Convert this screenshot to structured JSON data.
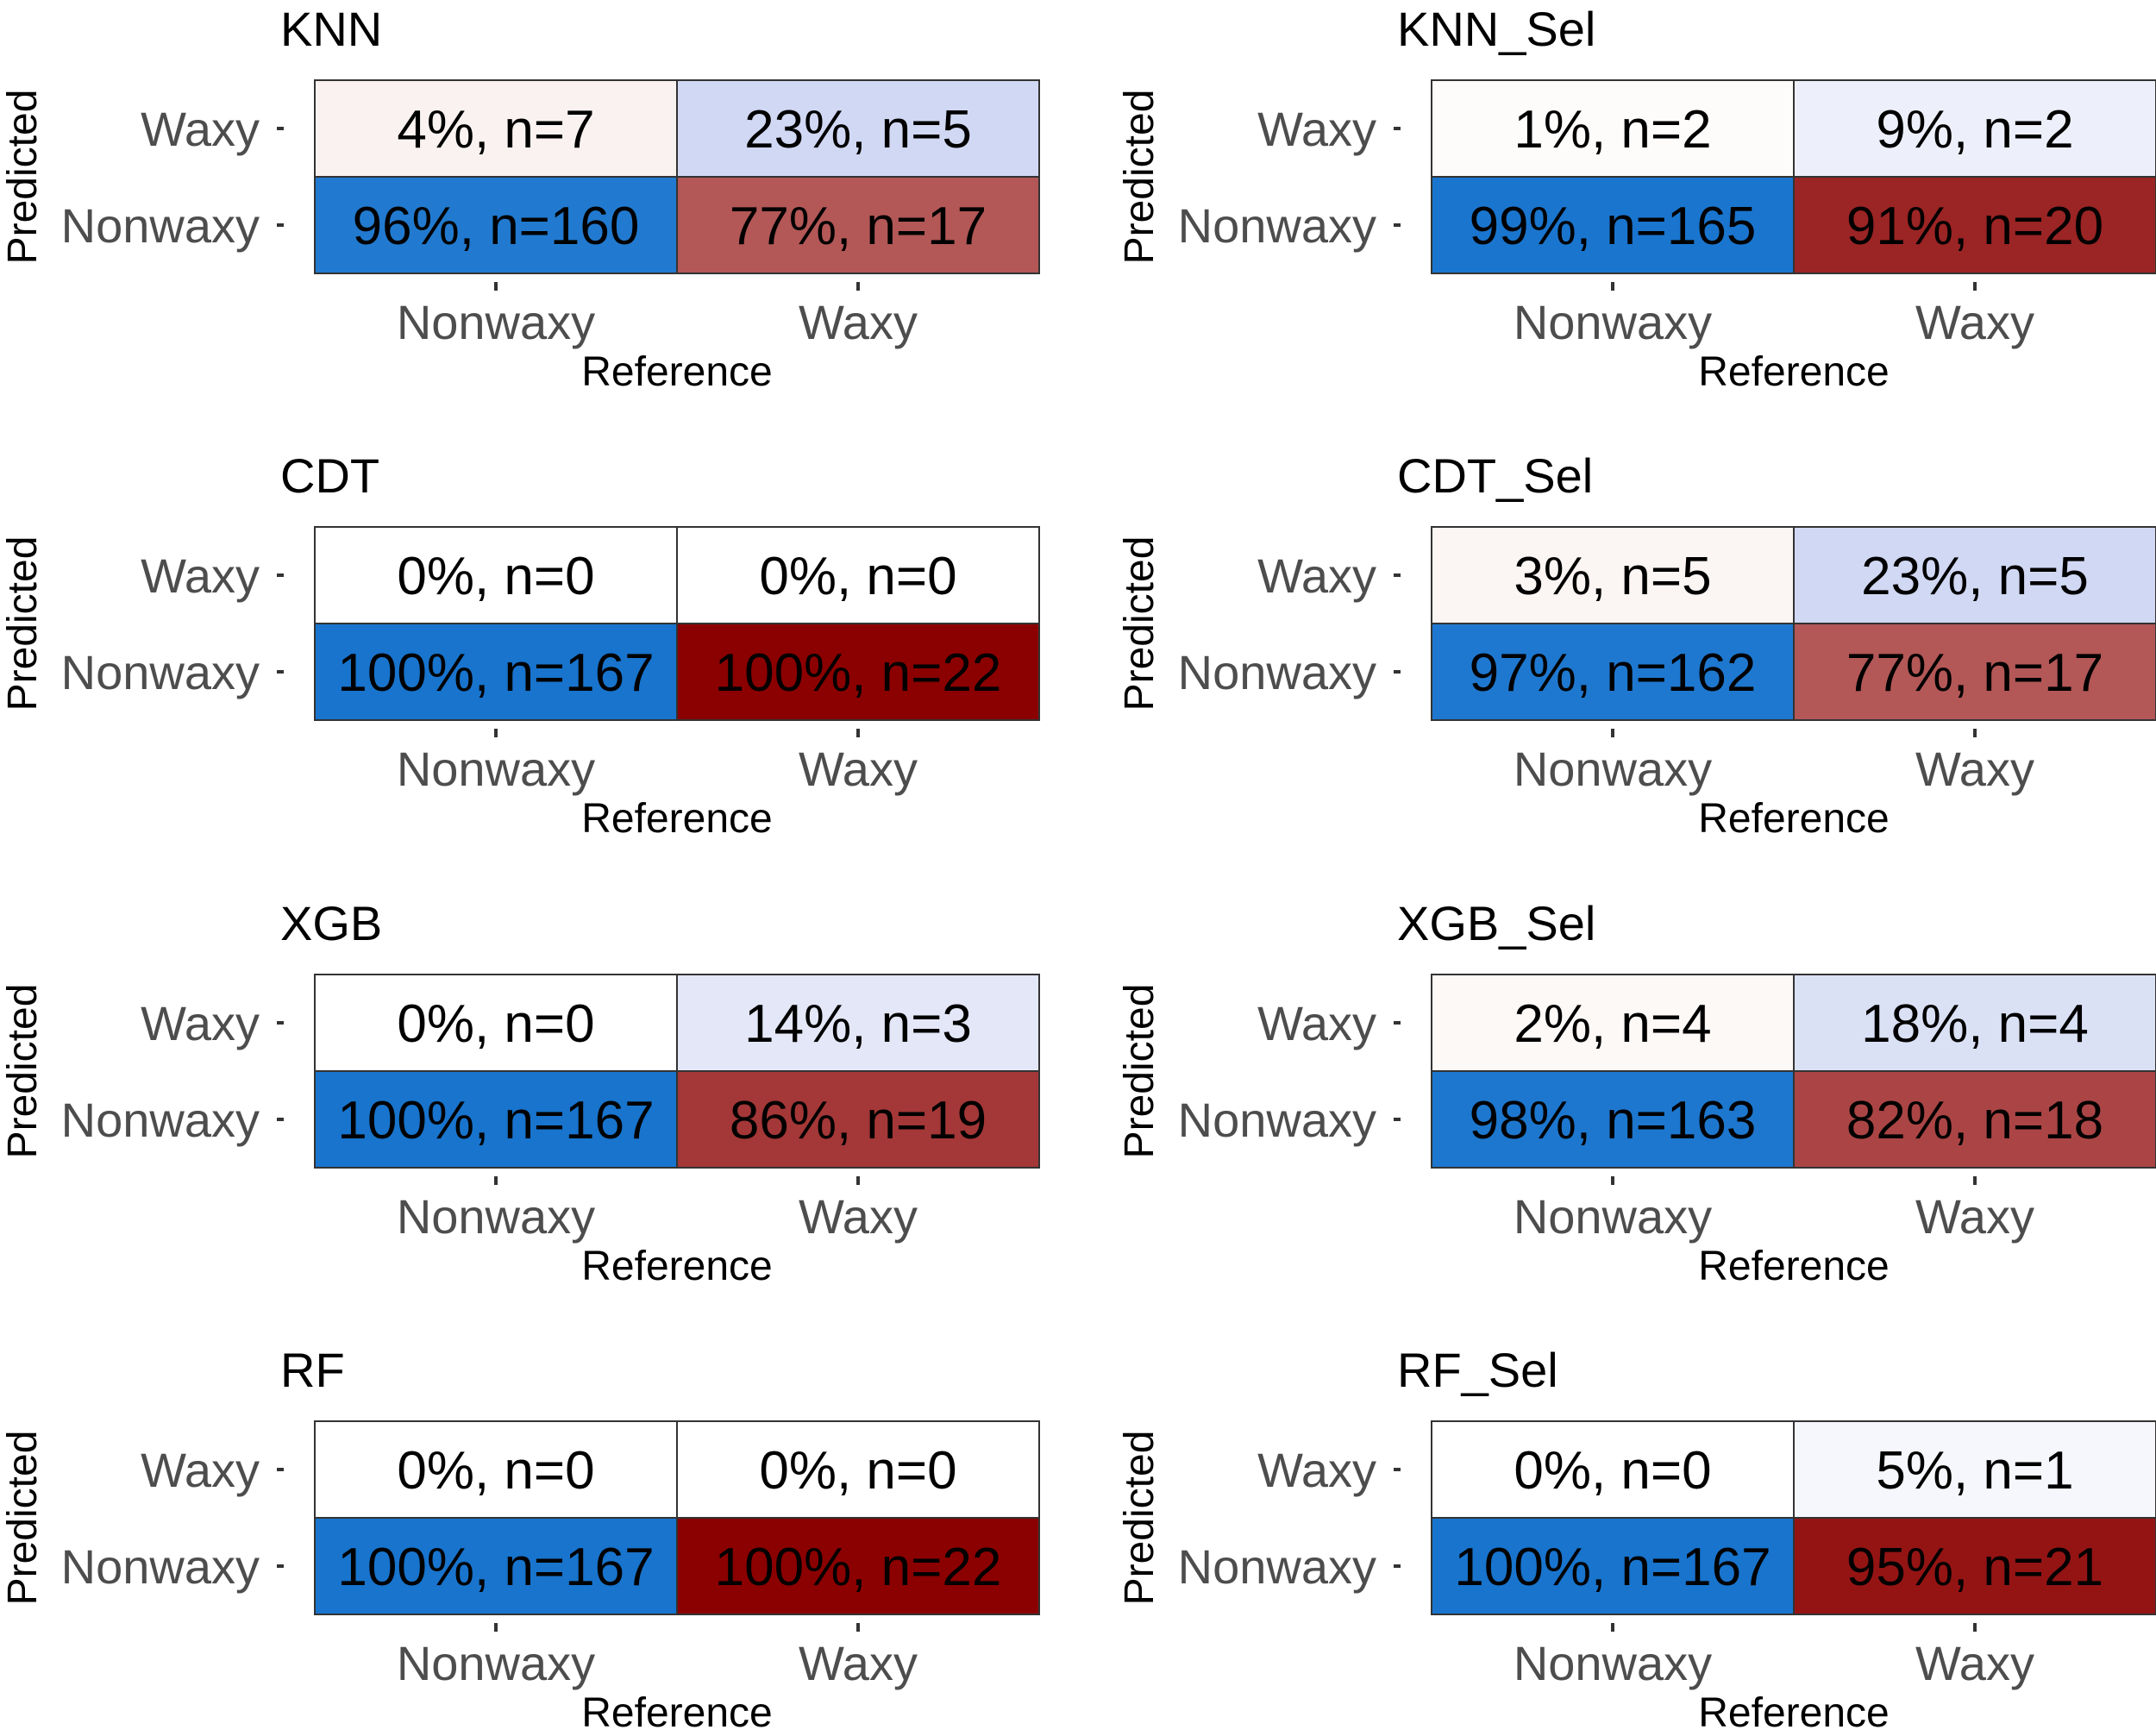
{
  "chart_data": [
    {
      "type": "heatmap",
      "title": "KNN",
      "xlabel": "Reference",
      "ylabel": "Predicted",
      "x_categories": [
        "Nonwaxy",
        "Waxy"
      ],
      "y_categories": [
        "Waxy",
        "Nonwaxy"
      ],
      "cells": [
        {
          "reference": "Nonwaxy",
          "predicted": "Waxy",
          "percent": 4,
          "n": 7,
          "label": "4%, n=7"
        },
        {
          "reference": "Waxy",
          "predicted": "Waxy",
          "percent": 23,
          "n": 5,
          "label": "23%, n=5"
        },
        {
          "reference": "Nonwaxy",
          "predicted": "Nonwaxy",
          "percent": 96,
          "n": 160,
          "label": "96%, n=160"
        },
        {
          "reference": "Waxy",
          "predicted": "Nonwaxy",
          "percent": 77,
          "n": 17,
          "label": "77%, n=17"
        }
      ]
    },
    {
      "type": "heatmap",
      "title": "KNN_Sel",
      "xlabel": "Reference",
      "ylabel": "Predicted",
      "x_categories": [
        "Nonwaxy",
        "Waxy"
      ],
      "y_categories": [
        "Waxy",
        "Nonwaxy"
      ],
      "cells": [
        {
          "reference": "Nonwaxy",
          "predicted": "Waxy",
          "percent": 1,
          "n": 2,
          "label": "1%, n=2"
        },
        {
          "reference": "Waxy",
          "predicted": "Waxy",
          "percent": 9,
          "n": 2,
          "label": "9%, n=2"
        },
        {
          "reference": "Nonwaxy",
          "predicted": "Nonwaxy",
          "percent": 99,
          "n": 165,
          "label": "99%, n=165"
        },
        {
          "reference": "Waxy",
          "predicted": "Nonwaxy",
          "percent": 91,
          "n": 20,
          "label": "91%, n=20"
        }
      ]
    },
    {
      "type": "heatmap",
      "title": "CDT",
      "xlabel": "Reference",
      "ylabel": "Predicted",
      "x_categories": [
        "Nonwaxy",
        "Waxy"
      ],
      "y_categories": [
        "Waxy",
        "Nonwaxy"
      ],
      "cells": [
        {
          "reference": "Nonwaxy",
          "predicted": "Waxy",
          "percent": 0,
          "n": 0,
          "label": "0%, n=0"
        },
        {
          "reference": "Waxy",
          "predicted": "Waxy",
          "percent": 0,
          "n": 0,
          "label": "0%, n=0"
        },
        {
          "reference": "Nonwaxy",
          "predicted": "Nonwaxy",
          "percent": 100,
          "n": 167,
          "label": "100%, n=167"
        },
        {
          "reference": "Waxy",
          "predicted": "Nonwaxy",
          "percent": 100,
          "n": 22,
          "label": "100%, n=22"
        }
      ]
    },
    {
      "type": "heatmap",
      "title": "CDT_Sel",
      "xlabel": "Reference",
      "ylabel": "Predicted",
      "x_categories": [
        "Nonwaxy",
        "Waxy"
      ],
      "y_categories": [
        "Waxy",
        "Nonwaxy"
      ],
      "cells": [
        {
          "reference": "Nonwaxy",
          "predicted": "Waxy",
          "percent": 3,
          "n": 5,
          "label": "3%, n=5"
        },
        {
          "reference": "Waxy",
          "predicted": "Waxy",
          "percent": 23,
          "n": 5,
          "label": "23%, n=5"
        },
        {
          "reference": "Nonwaxy",
          "predicted": "Nonwaxy",
          "percent": 97,
          "n": 162,
          "label": "97%, n=162"
        },
        {
          "reference": "Waxy",
          "predicted": "Nonwaxy",
          "percent": 77,
          "n": 17,
          "label": "77%, n=17"
        }
      ]
    },
    {
      "type": "heatmap",
      "title": "XGB",
      "xlabel": "Reference",
      "ylabel": "Predicted",
      "x_categories": [
        "Nonwaxy",
        "Waxy"
      ],
      "y_categories": [
        "Waxy",
        "Nonwaxy"
      ],
      "cells": [
        {
          "reference": "Nonwaxy",
          "predicted": "Waxy",
          "percent": 0,
          "n": 0,
          "label": "0%, n=0"
        },
        {
          "reference": "Waxy",
          "predicted": "Waxy",
          "percent": 14,
          "n": 3,
          "label": "14%, n=3"
        },
        {
          "reference": "Nonwaxy",
          "predicted": "Nonwaxy",
          "percent": 100,
          "n": 167,
          "label": "100%, n=167"
        },
        {
          "reference": "Waxy",
          "predicted": "Nonwaxy",
          "percent": 86,
          "n": 19,
          "label": "86%, n=19"
        }
      ]
    },
    {
      "type": "heatmap",
      "title": "XGB_Sel",
      "xlabel": "Reference",
      "ylabel": "Predicted",
      "x_categories": [
        "Nonwaxy",
        "Waxy"
      ],
      "y_categories": [
        "Waxy",
        "Nonwaxy"
      ],
      "cells": [
        {
          "reference": "Nonwaxy",
          "predicted": "Waxy",
          "percent": 2,
          "n": 4,
          "label": "2%, n=4"
        },
        {
          "reference": "Waxy",
          "predicted": "Waxy",
          "percent": 18,
          "n": 4,
          "label": "18%, n=4"
        },
        {
          "reference": "Nonwaxy",
          "predicted": "Nonwaxy",
          "percent": 98,
          "n": 163,
          "label": "98%, n=163"
        },
        {
          "reference": "Waxy",
          "predicted": "Nonwaxy",
          "percent": 82,
          "n": 18,
          "label": "82%, n=18"
        }
      ]
    },
    {
      "type": "heatmap",
      "title": "RF",
      "xlabel": "Reference",
      "ylabel": "Predicted",
      "x_categories": [
        "Nonwaxy",
        "Waxy"
      ],
      "y_categories": [
        "Waxy",
        "Nonwaxy"
      ],
      "cells": [
        {
          "reference": "Nonwaxy",
          "predicted": "Waxy",
          "percent": 0,
          "n": 0,
          "label": "0%, n=0"
        },
        {
          "reference": "Waxy",
          "predicted": "Waxy",
          "percent": 0,
          "n": 0,
          "label": "0%, n=0"
        },
        {
          "reference": "Nonwaxy",
          "predicted": "Nonwaxy",
          "percent": 100,
          "n": 167,
          "label": "100%, n=167"
        },
        {
          "reference": "Waxy",
          "predicted": "Nonwaxy",
          "percent": 100,
          "n": 22,
          "label": "100%, n=22"
        }
      ]
    },
    {
      "type": "heatmap",
      "title": "RF_Sel",
      "xlabel": "Reference",
      "ylabel": "Predicted",
      "x_categories": [
        "Nonwaxy",
        "Waxy"
      ],
      "y_categories": [
        "Waxy",
        "Nonwaxy"
      ],
      "cells": [
        {
          "reference": "Nonwaxy",
          "predicted": "Waxy",
          "percent": 0,
          "n": 0,
          "label": "0%, n=0"
        },
        {
          "reference": "Waxy",
          "predicted": "Waxy",
          "percent": 5,
          "n": 1,
          "label": "5%, n=1"
        },
        {
          "reference": "Nonwaxy",
          "predicted": "Nonwaxy",
          "percent": 100,
          "n": 167,
          "label": "100%, n=167"
        },
        {
          "reference": "Waxy",
          "predicted": "Nonwaxy",
          "percent": 95,
          "n": 21,
          "label": "95%, n=21"
        }
      ]
    }
  ],
  "colors": {
    "nonwaxy_high": "#1874cd",
    "waxy_high": "#8b0000",
    "waxy_low": "#ffffff",
    "nonwaxy_low": "#ffffff",
    "waxy_tint_warm": "#fdf5f3",
    "waxy_tint_cool": "#d6ddf5"
  }
}
